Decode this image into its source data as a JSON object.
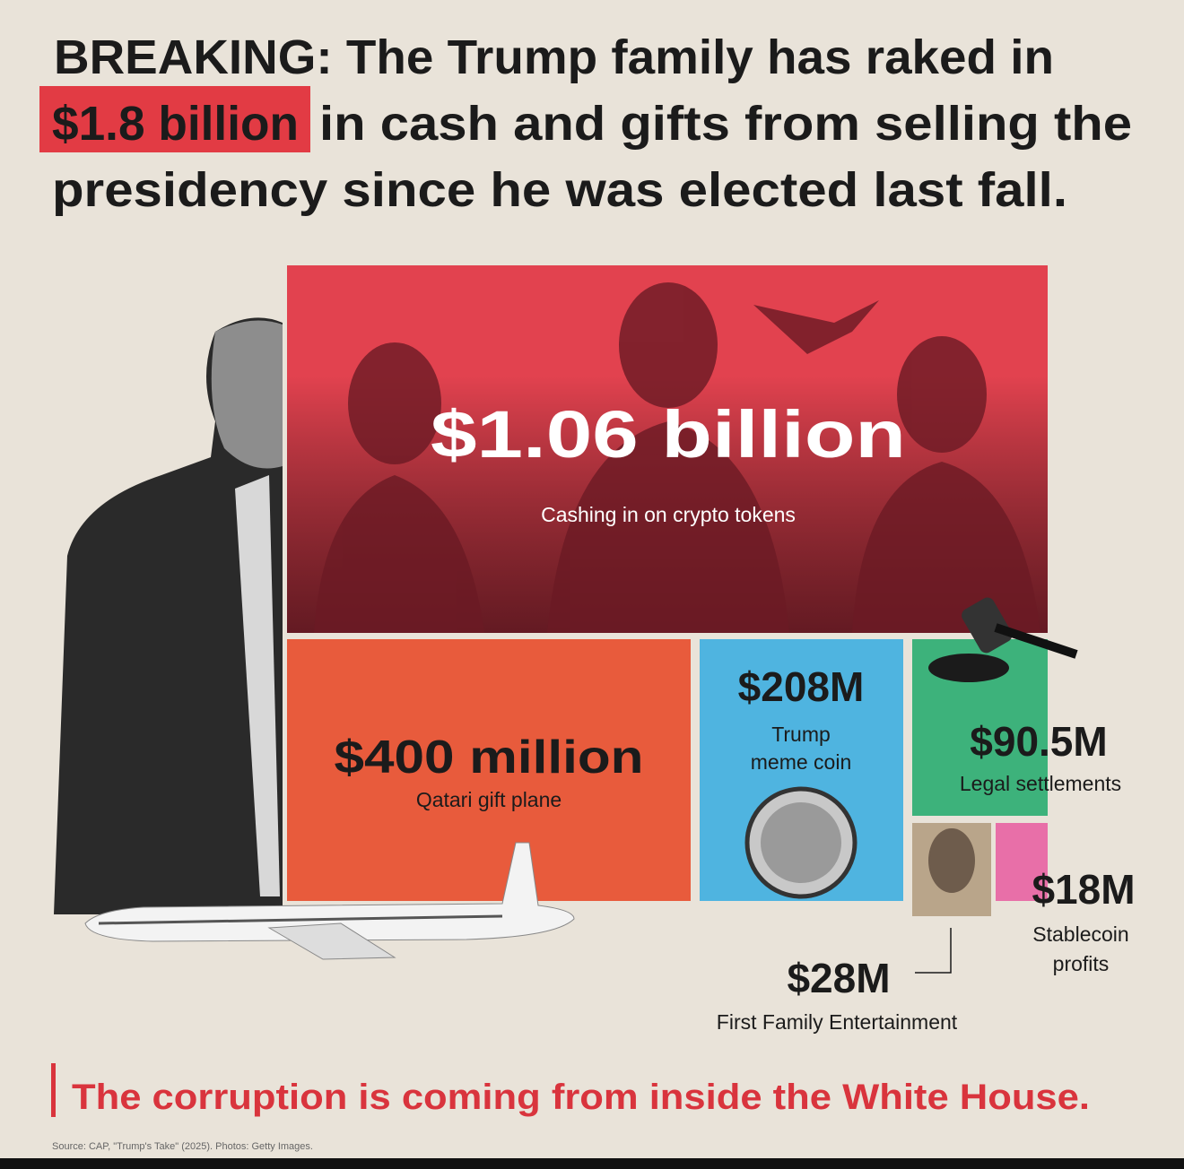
{
  "headline": {
    "line1": "BREAKING: The Trump family has raked in",
    "highlight": "$1.8 billion",
    "line2": "in cash and gifts from selling the",
    "line3": "presidency since he was elected last fall."
  },
  "tiles": [
    {
      "amount": "$1.06 billion",
      "label": "Cashing in on crypto tokens"
    },
    {
      "amount": "$400 million",
      "label": "Qatari gift plane"
    },
    {
      "amount": "$208M",
      "label_lines": [
        "Trump",
        "meme coin"
      ]
    },
    {
      "amount": "$90.5M",
      "label": "Legal settlements"
    },
    {
      "amount": "$18M",
      "label_lines": [
        "Stablecoin",
        "profits"
      ]
    },
    {
      "amount": "$28M",
      "label": "First Family Entertainment"
    }
  ],
  "tagline": "The corruption is coming from inside the White House.",
  "source": "Source: CAP, \"Trump's Take\" (2025). Photos: Getty Images."
}
